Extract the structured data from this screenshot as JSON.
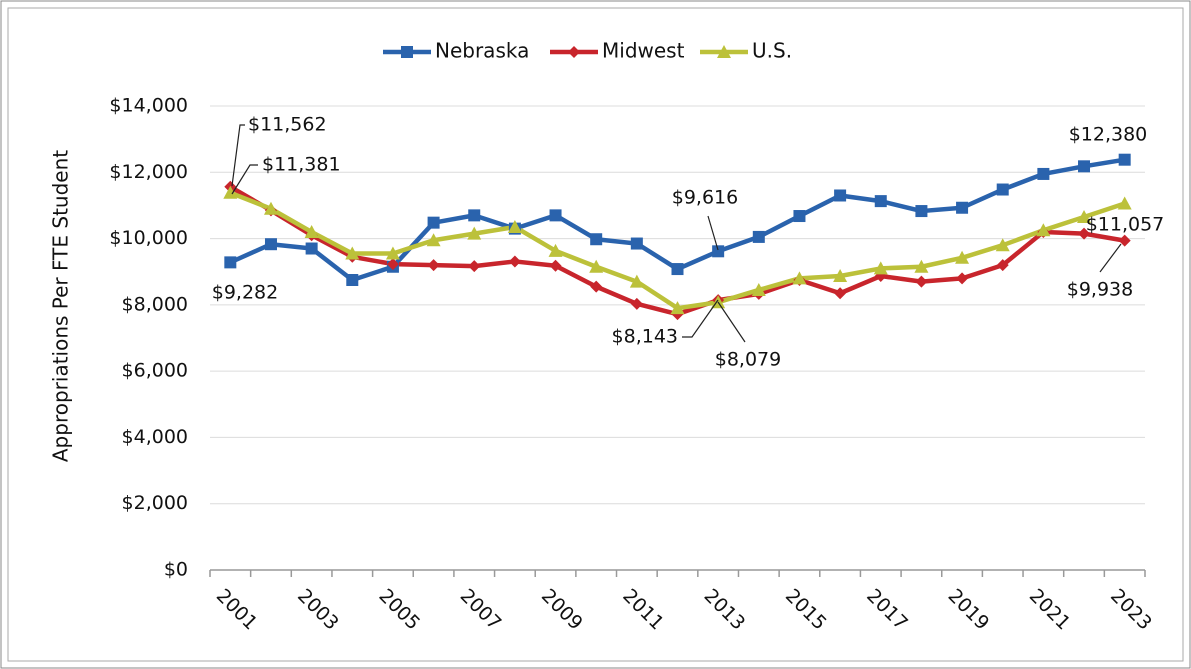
{
  "chart_data": {
    "type": "line",
    "y_axis_label": "Appropriations Per FTE Student",
    "categories": [
      "2001",
      null,
      "2003",
      null,
      "2005",
      null,
      "2007",
      null,
      "2009",
      null,
      "2011",
      null,
      "2013",
      null,
      "2015",
      null,
      "2017",
      null,
      "2019",
      null,
      "2021",
      null,
      "2023"
    ],
    "series": [
      {
        "name": "Nebraska",
        "color": "#2a63ad",
        "marker": "square",
        "values": [
          9282,
          9830,
          9700,
          8750,
          9150,
          10480,
          10700,
          10300,
          10700,
          9980,
          9850,
          9080,
          9616,
          10050,
          10680,
          11300,
          11130,
          10830,
          10930,
          11480,
          11950,
          12180,
          12380
        ],
        "value_labels": [
          "$9,282",
          null,
          null,
          null,
          null,
          null,
          null,
          null,
          null,
          null,
          null,
          null,
          "$9,616",
          null,
          null,
          null,
          null,
          null,
          null,
          null,
          null,
          null,
          "$12,380"
        ]
      },
      {
        "name": "Midwest",
        "color": "#c8252c",
        "marker": "diamond",
        "values": [
          11562,
          10850,
          10100,
          9450,
          9230,
          9200,
          9170,
          9310,
          9180,
          8550,
          8030,
          7720,
          8143,
          8330,
          8750,
          8350,
          8870,
          8700,
          8800,
          9200,
          10200,
          10150,
          9938
        ],
        "value_labels": [
          "$11,562",
          null,
          null,
          null,
          null,
          null,
          null,
          null,
          null,
          null,
          null,
          null,
          "$8,143",
          null,
          null,
          null,
          null,
          null,
          null,
          null,
          null,
          null,
          "$9,938"
        ]
      },
      {
        "name": "U.S.",
        "color": "#bcc13a",
        "marker": "triangle",
        "values": [
          11381,
          10900,
          10200,
          9550,
          9550,
          9950,
          10150,
          10350,
          9630,
          9150,
          8700,
          7900,
          8079,
          8450,
          8800,
          8870,
          9100,
          9150,
          9420,
          9800,
          10250,
          10650,
          11057
        ],
        "value_labels": [
          "$11,381",
          null,
          null,
          null,
          null,
          null,
          null,
          null,
          null,
          null,
          null,
          null,
          "$8,079",
          null,
          null,
          null,
          null,
          null,
          null,
          null,
          null,
          null,
          "$11,057"
        ]
      }
    ],
    "ylim": [
      0,
      14000
    ],
    "yticks": [
      {
        "value": 0,
        "label": "$0"
      },
      {
        "value": 2000,
        "label": "$2,000"
      },
      {
        "value": 4000,
        "label": "$4,000"
      },
      {
        "value": 6000,
        "label": "$6,000"
      },
      {
        "value": 8000,
        "label": "$8,000"
      },
      {
        "value": 10000,
        "label": "$10,000"
      },
      {
        "value": 12000,
        "label": "$12,000"
      },
      {
        "value": 14000,
        "label": "$14,000"
      }
    ],
    "grid": true,
    "legend": "top"
  }
}
